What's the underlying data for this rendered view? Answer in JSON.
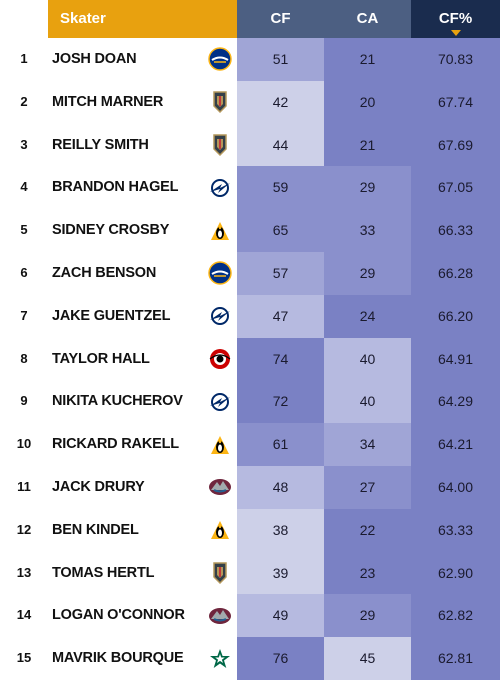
{
  "header": {
    "skater_label": "Skater",
    "cf_label": "CF",
    "ca_label": "CA",
    "cfpct_label": "CF%"
  },
  "colors": {
    "header_gold": "#e8a10f",
    "header_slate": "#4c5f82",
    "header_navy": "#1a2c4e",
    "cell_shades": [
      "#cdd0e8",
      "#b6bae0",
      "#a0a5d6",
      "#8a90cc",
      "#7a81c4"
    ]
  },
  "rows": [
    {
      "rank": "1",
      "name": "JOSH DOAN",
      "team_icon": "sabres-logo-icon",
      "cf": "51",
      "ca": "21",
      "cfpct": "70.83",
      "cf_shade": 2,
      "ca_shade": 4,
      "pct_shade": 4
    },
    {
      "rank": "2",
      "name": "MITCH MARNER",
      "team_icon": "golden-knights-logo-icon",
      "cf": "42",
      "ca": "20",
      "cfpct": "67.74",
      "cf_shade": 0,
      "ca_shade": 4,
      "pct_shade": 4
    },
    {
      "rank": "3",
      "name": "REILLY SMITH",
      "team_icon": "golden-knights-logo-icon",
      "cf": "44",
      "ca": "21",
      "cfpct": "67.69",
      "cf_shade": 0,
      "ca_shade": 4,
      "pct_shade": 4
    },
    {
      "rank": "4",
      "name": "BRANDON HAGEL",
      "team_icon": "lightning-logo-icon",
      "cf": "59",
      "ca": "29",
      "cfpct": "67.05",
      "cf_shade": 3,
      "ca_shade": 3,
      "pct_shade": 4
    },
    {
      "rank": "5",
      "name": "SIDNEY CROSBY",
      "team_icon": "penguins-logo-icon",
      "cf": "65",
      "ca": "33",
      "cfpct": "66.33",
      "cf_shade": 3,
      "ca_shade": 3,
      "pct_shade": 4
    },
    {
      "rank": "6",
      "name": "ZACH BENSON",
      "team_icon": "sabres-logo-icon",
      "cf": "57",
      "ca": "29",
      "cfpct": "66.28",
      "cf_shade": 2,
      "ca_shade": 3,
      "pct_shade": 4
    },
    {
      "rank": "7",
      "name": "JAKE GUENTZEL",
      "team_icon": "lightning-logo-icon",
      "cf": "47",
      "ca": "24",
      "cfpct": "66.20",
      "cf_shade": 1,
      "ca_shade": 4,
      "pct_shade": 4
    },
    {
      "rank": "8",
      "name": "TAYLOR HALL",
      "team_icon": "hurricanes-logo-icon",
      "cf": "74",
      "ca": "40",
      "cfpct": "64.91",
      "cf_shade": 4,
      "ca_shade": 1,
      "pct_shade": 4
    },
    {
      "rank": "9",
      "name": "NIKITA KUCHEROV",
      "team_icon": "lightning-logo-icon",
      "cf": "72",
      "ca": "40",
      "cfpct": "64.29",
      "cf_shade": 4,
      "ca_shade": 1,
      "pct_shade": 4
    },
    {
      "rank": "10",
      "name": "RICKARD RAKELL",
      "team_icon": "penguins-logo-icon",
      "cf": "61",
      "ca": "34",
      "cfpct": "64.21",
      "cf_shade": 3,
      "ca_shade": 2,
      "pct_shade": 4
    },
    {
      "rank": "11",
      "name": "JACK DRURY",
      "team_icon": "avalanche-logo-icon",
      "cf": "48",
      "ca": "27",
      "cfpct": "64.00",
      "cf_shade": 1,
      "ca_shade": 3,
      "pct_shade": 4
    },
    {
      "rank": "12",
      "name": "BEN KINDEL",
      "team_icon": "penguins-logo-icon",
      "cf": "38",
      "ca": "22",
      "cfpct": "63.33",
      "cf_shade": 0,
      "ca_shade": 4,
      "pct_shade": 4
    },
    {
      "rank": "13",
      "name": "TOMAS HERTL",
      "team_icon": "golden-knights-logo-icon",
      "cf": "39",
      "ca": "23",
      "cfpct": "62.90",
      "cf_shade": 0,
      "ca_shade": 4,
      "pct_shade": 4
    },
    {
      "rank": "14",
      "name": "LOGAN O'CONNOR",
      "team_icon": "avalanche-logo-icon",
      "cf": "49",
      "ca": "29",
      "cfpct": "62.82",
      "cf_shade": 1,
      "ca_shade": 3,
      "pct_shade": 4
    },
    {
      "rank": "15",
      "name": "MAVRIK BOURQUE",
      "team_icon": "stars-logo-icon",
      "cf": "76",
      "ca": "45",
      "cfpct": "62.81",
      "cf_shade": 4,
      "ca_shade": 0,
      "pct_shade": 4
    }
  ]
}
